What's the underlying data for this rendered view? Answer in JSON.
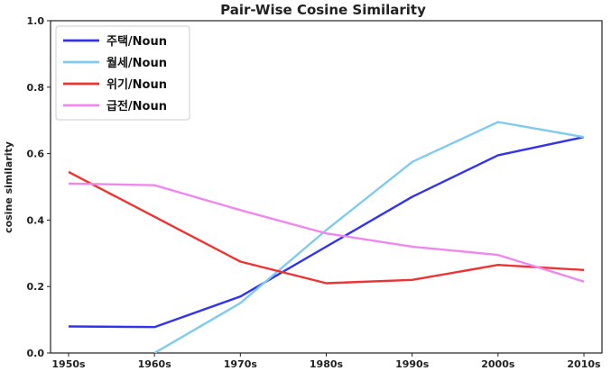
{
  "chart_data": {
    "type": "line",
    "title": "Pair-Wise Cosine Similarity",
    "xlabel": "",
    "ylabel": "cosine similarity",
    "categories": [
      "1950s",
      "1960s",
      "1970s",
      "1980s",
      "1990s",
      "2000s",
      "2010s"
    ],
    "ylim": [
      0.0,
      1.0
    ],
    "yticks": [
      "0.0",
      "0.2",
      "0.4",
      "0.6",
      "0.8",
      "1.0"
    ],
    "legend_position": "top-left",
    "grid": false,
    "series": [
      {
        "name": "주택/Noun",
        "color": "#3333ee",
        "values": [
          0.08,
          0.078,
          0.17,
          0.32,
          0.47,
          0.595,
          0.65
        ]
      },
      {
        "name": "월세/Noun",
        "color": "#7fcbee",
        "values": [
          null,
          0.0,
          0.15,
          0.37,
          0.575,
          0.695,
          0.65
        ]
      },
      {
        "name": "위기/Noun",
        "color": "#ee3333",
        "values": [
          0.545,
          0.41,
          0.275,
          0.21,
          0.22,
          0.265,
          0.25
        ]
      },
      {
        "name": "급전/Noun",
        "color": "#ee88ee",
        "values": [
          0.51,
          0.505,
          0.43,
          0.36,
          0.32,
          0.295,
          0.215
        ]
      }
    ]
  }
}
